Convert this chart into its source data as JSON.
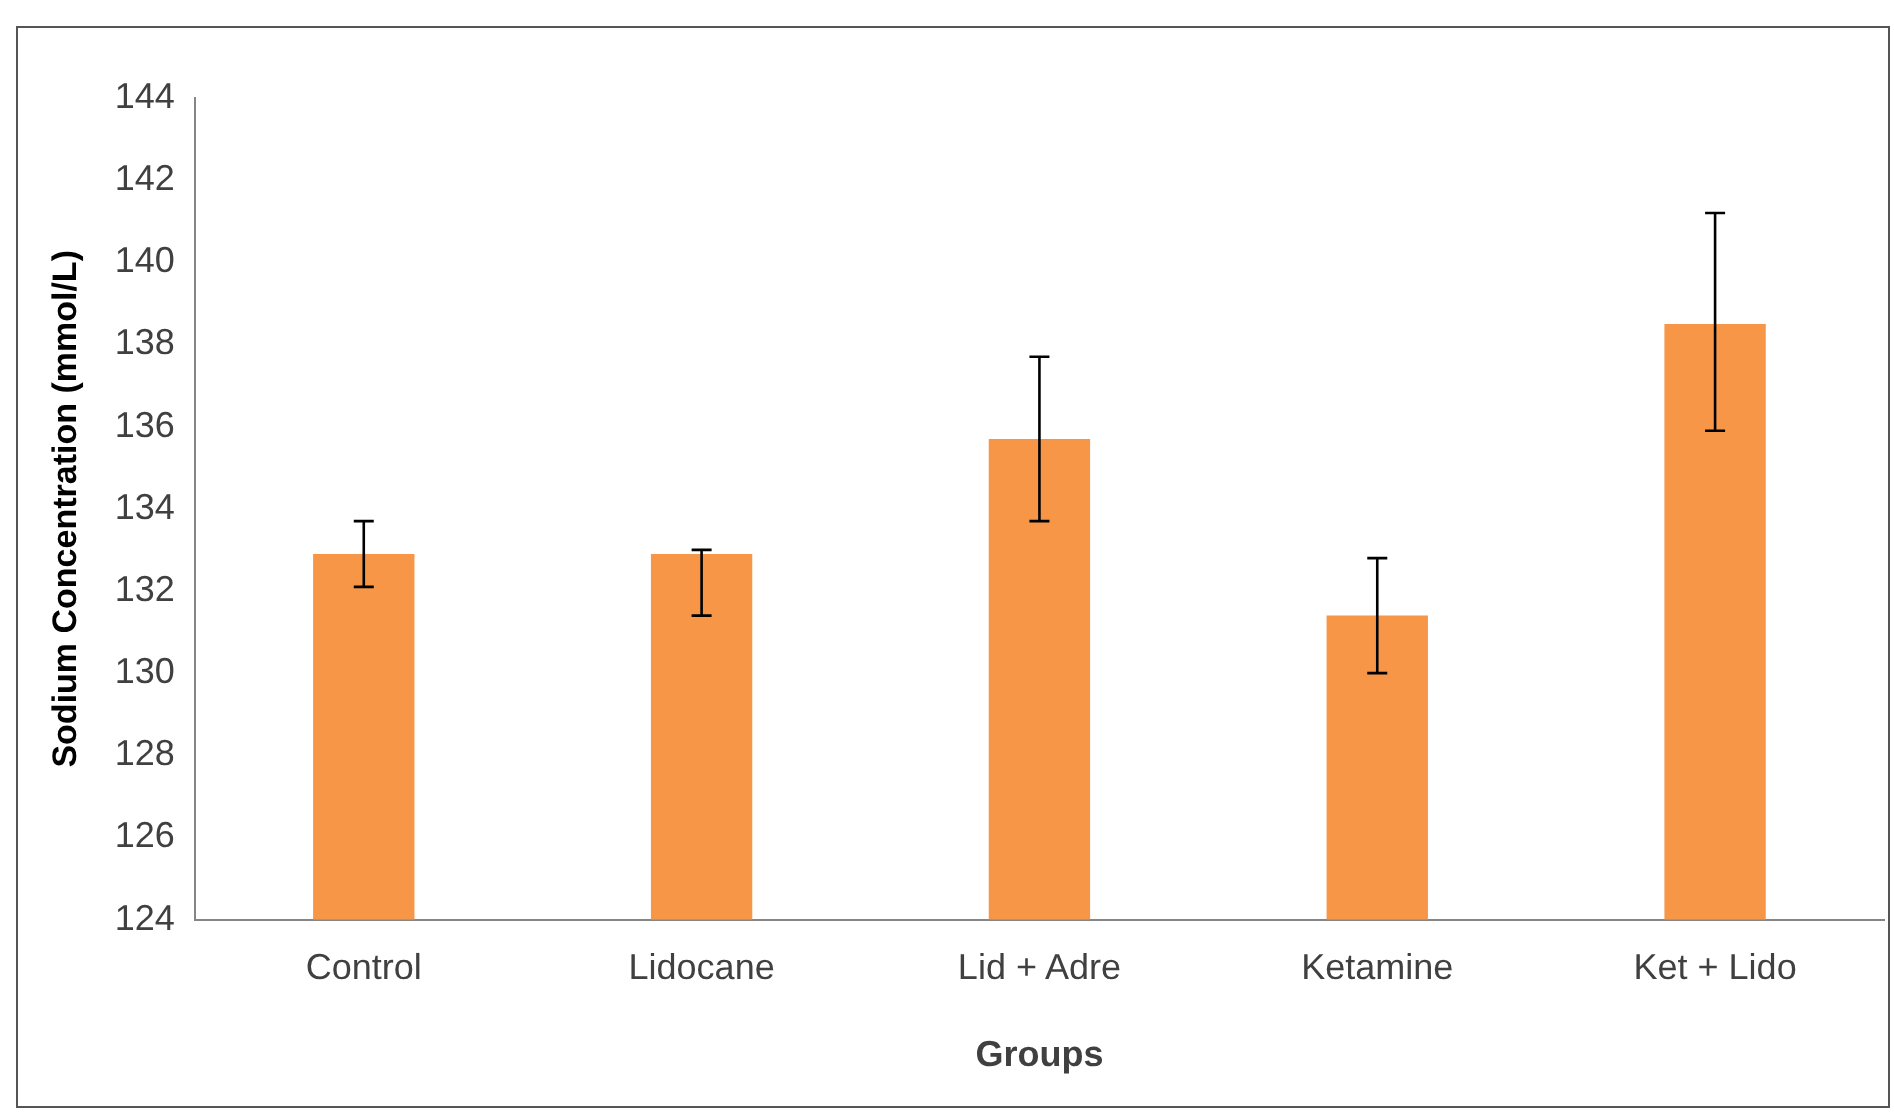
{
  "chart_data": {
    "type": "bar",
    "xlabel": "Groups",
    "ylabel": "Sodium Concentration (mmol/L)",
    "categories": [
      "Control",
      "Lidocane",
      "Lid + Adre",
      "Ketamine",
      "Ket + Lido"
    ],
    "values": [
      132.9,
      132.9,
      135.7,
      131.4,
      138.5
    ],
    "errors": [
      [
        132.1,
        133.7
      ],
      [
        131.4,
        133.0
      ],
      [
        133.7,
        137.7
      ],
      [
        130.0,
        132.8
      ],
      [
        135.9,
        141.2
      ]
    ],
    "color": "#f79646",
    "ylim": [
      124,
      144
    ],
    "yticks": [
      124,
      126,
      128,
      130,
      132,
      134,
      136,
      138,
      140,
      142,
      144
    ],
    "grid": false,
    "legend": false
  }
}
